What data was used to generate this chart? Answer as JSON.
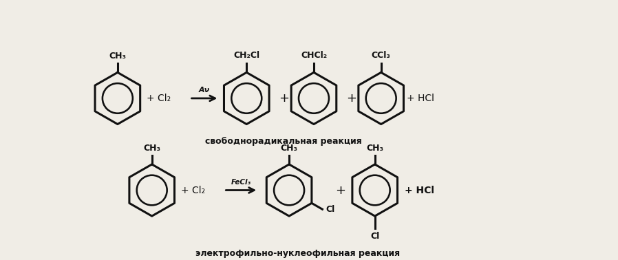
{
  "bg_color": "#f0ede6",
  "line_color": "#111111",
  "text_color": "#111111",
  "title1": "свободнорадикальная реакция",
  "title2": "электрофильно-нуклеофильная реакция",
  "reaction1_label": "Aν",
  "reaction2_label": "FeCl₃",
  "figsize": [
    8.98,
    3.78
  ],
  "dpi": 100
}
